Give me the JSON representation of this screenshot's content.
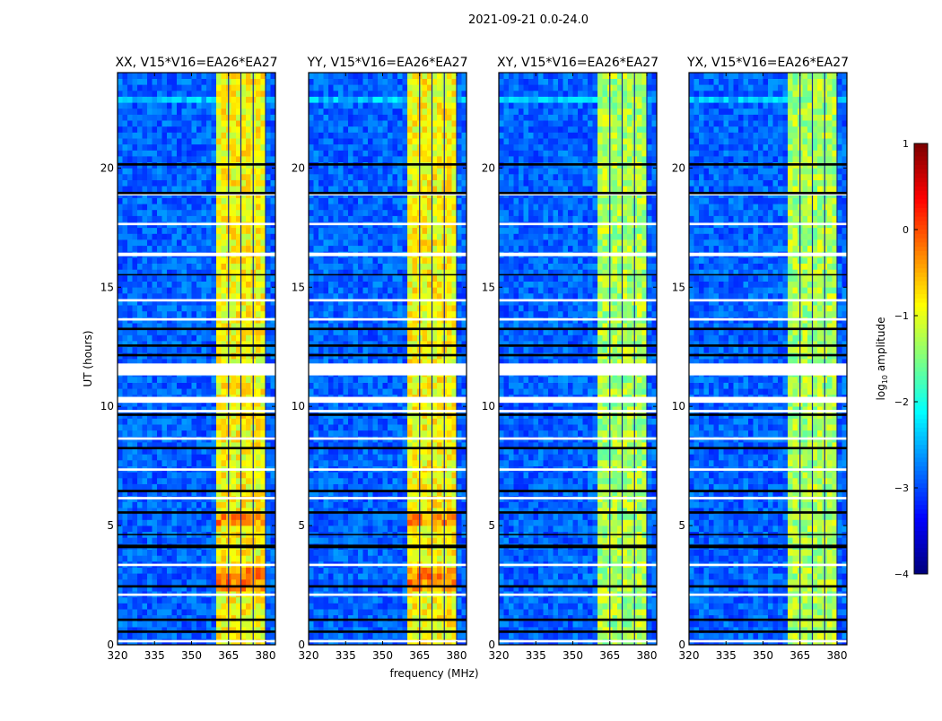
{
  "chart_data": {
    "type": "heatmap",
    "suptitle": "2021-09-21 0.0-24.0",
    "xlabel": "frequency (MHz)",
    "ylabel": "UT (hours)",
    "xlim": [
      320,
      384
    ],
    "ylim": [
      0,
      24
    ],
    "xticks": [
      320,
      335,
      350,
      365,
      380
    ],
    "yticks": [
      0,
      5,
      10,
      15,
      20
    ],
    "panels": [
      {
        "title": "XX, V15*V16=EA26*EA27",
        "background_log_amp": -2.9,
        "band_log_amp": -0.9
      },
      {
        "title": "YY, V15*V16=EA26*EA27",
        "background_log_amp": -2.9,
        "band_log_amp": -0.9
      },
      {
        "title": "XY, V15*V16=EA26*EA27",
        "background_log_amp": -2.9,
        "band_log_amp": -1.3
      },
      {
        "title": "YX, V15*V16=EA26*EA27",
        "background_log_amp": -2.9,
        "band_log_amp": -1.3
      }
    ],
    "rfi_band_mhz": [
      360,
      380
    ],
    "channel_edges_mhz": [
      365,
      370,
      375
    ],
    "flagged_hours_white": [
      [
        11.3,
        11.8
      ],
      [
        10.15,
        10.4
      ],
      [
        9.75,
        9.85
      ],
      [
        18.85,
        18.95
      ],
      [
        17.6,
        17.7
      ],
      [
        16.3,
        16.45
      ],
      [
        14.4,
        14.5
      ],
      [
        13.6,
        13.7
      ],
      [
        8.6,
        8.7
      ],
      [
        7.3,
        7.4
      ],
      [
        6.1,
        6.2
      ],
      [
        3.3,
        3.4
      ],
      [
        2.05,
        2.15
      ],
      [
        0.1,
        0.2
      ]
    ],
    "flagged_hours_black": [
      [
        20.1,
        20.2
      ],
      [
        18.9,
        19.0
      ],
      [
        15.5,
        15.55
      ],
      [
        13.2,
        13.3
      ],
      [
        12.5,
        12.6
      ],
      [
        12.1,
        12.2
      ],
      [
        9.6,
        9.7
      ],
      [
        8.2,
        8.3
      ],
      [
        6.4,
        6.5
      ],
      [
        5.5,
        5.6
      ],
      [
        4.6,
        4.65
      ],
      [
        4.05,
        4.2
      ],
      [
        2.4,
        2.5
      ],
      [
        1.0,
        1.1
      ],
      [
        0.5,
        0.6
      ]
    ],
    "colorbar": {
      "label": "log10 amplitude",
      "range": [
        -4,
        1
      ],
      "ticks": [
        1,
        0,
        -1,
        -2,
        -3,
        -4
      ],
      "colormap": "jet"
    }
  }
}
